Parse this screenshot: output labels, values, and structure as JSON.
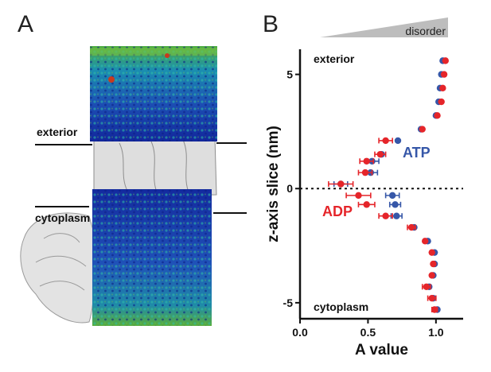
{
  "panel_a": {
    "letter": "A",
    "exterior_label": "exterior",
    "cytoplasm_label": "cytoplasm"
  },
  "panel_b": {
    "letter": "B",
    "disorder_label": "disorder",
    "exterior_label": "exterior",
    "cytoplasm_label": "cytoplasm"
  },
  "chart_data": {
    "type": "scatter",
    "xlabel": "A value",
    "ylabel": "z-axis slice (nm)",
    "xlim": [
      0.0,
      1.2
    ],
    "ylim": [
      -5.7,
      6.1
    ],
    "xticks": [
      "0.0",
      "0.5",
      "1.0"
    ],
    "yticks": [
      "-5",
      "0",
      "5"
    ],
    "reference_line_y": 0,
    "grid": false,
    "series": [
      {
        "name": "ADP",
        "color": "#e5252a",
        "points": [
          {
            "x": 1.07,
            "y": 5.6,
            "err": 0.0
          },
          {
            "x": 1.06,
            "y": 5.0,
            "err": 0.0
          },
          {
            "x": 1.05,
            "y": 4.4,
            "err": 0.0
          },
          {
            "x": 1.04,
            "y": 3.8,
            "err": 0.0
          },
          {
            "x": 1.01,
            "y": 3.2,
            "err": 0.0
          },
          {
            "x": 0.9,
            "y": 2.6,
            "err": 0.0
          },
          {
            "x": 0.63,
            "y": 2.1,
            "err": 0.05
          },
          {
            "x": 0.59,
            "y": 1.5,
            "err": 0.04
          },
          {
            "x": 0.49,
            "y": 1.2,
            "err": 0.05
          },
          {
            "x": 0.48,
            "y": 0.7,
            "err": 0.05
          },
          {
            "x": 0.3,
            "y": 0.2,
            "err": 0.09
          },
          {
            "x": 0.43,
            "y": -0.3,
            "err": 0.09
          },
          {
            "x": 0.49,
            "y": -0.7,
            "err": 0.06
          },
          {
            "x": 0.63,
            "y": -1.2,
            "err": 0.05
          },
          {
            "x": 0.82,
            "y": -1.7,
            "err": 0.03
          },
          {
            "x": 0.92,
            "y": -2.3,
            "err": 0.0
          },
          {
            "x": 0.97,
            "y": -2.8,
            "err": 0.0
          },
          {
            "x": 0.98,
            "y": -3.3,
            "err": 0.0
          },
          {
            "x": 0.97,
            "y": -3.8,
            "err": 0.0
          },
          {
            "x": 0.93,
            "y": -4.3,
            "err": 0.03
          },
          {
            "x": 0.97,
            "y": -4.8,
            "err": 0.03
          },
          {
            "x": 0.99,
            "y": -5.3,
            "err": 0.02
          }
        ]
      },
      {
        "name": "ATP",
        "color": "#3657a8",
        "points": [
          {
            "x": 1.05,
            "y": 5.6,
            "err": 0.0
          },
          {
            "x": 1.04,
            "y": 5.0,
            "err": 0.0
          },
          {
            "x": 1.03,
            "y": 4.4,
            "err": 0.0
          },
          {
            "x": 1.02,
            "y": 3.8,
            "err": 0.0
          },
          {
            "x": 1.0,
            "y": 3.2,
            "err": 0.0
          },
          {
            "x": 0.89,
            "y": 2.6,
            "err": 0.0
          },
          {
            "x": 0.72,
            "y": 2.1,
            "err": 0.0
          },
          {
            "x": 0.6,
            "y": 1.5,
            "err": 0.0
          },
          {
            "x": 0.53,
            "y": 1.2,
            "err": 0.05
          },
          {
            "x": 0.52,
            "y": 0.7,
            "err": 0.05
          },
          {
            "x": 0.3,
            "y": 0.2,
            "err": 0.05
          },
          {
            "x": 0.68,
            "y": -0.3,
            "err": 0.05
          },
          {
            "x": 0.7,
            "y": -0.7,
            "err": 0.04
          },
          {
            "x": 0.71,
            "y": -1.2,
            "err": 0.04
          },
          {
            "x": 0.84,
            "y": -1.7,
            "err": 0.0
          },
          {
            "x": 0.94,
            "y": -2.3,
            "err": 0.0
          },
          {
            "x": 0.99,
            "y": -2.8,
            "err": 0.0
          },
          {
            "x": 0.99,
            "y": -3.3,
            "err": 0.0
          },
          {
            "x": 0.98,
            "y": -3.8,
            "err": 0.0
          },
          {
            "x": 0.95,
            "y": -4.3,
            "err": 0.0
          },
          {
            "x": 0.98,
            "y": -4.8,
            "err": 0.0
          },
          {
            "x": 1.01,
            "y": -5.3,
            "err": 0.0
          }
        ]
      }
    ]
  }
}
